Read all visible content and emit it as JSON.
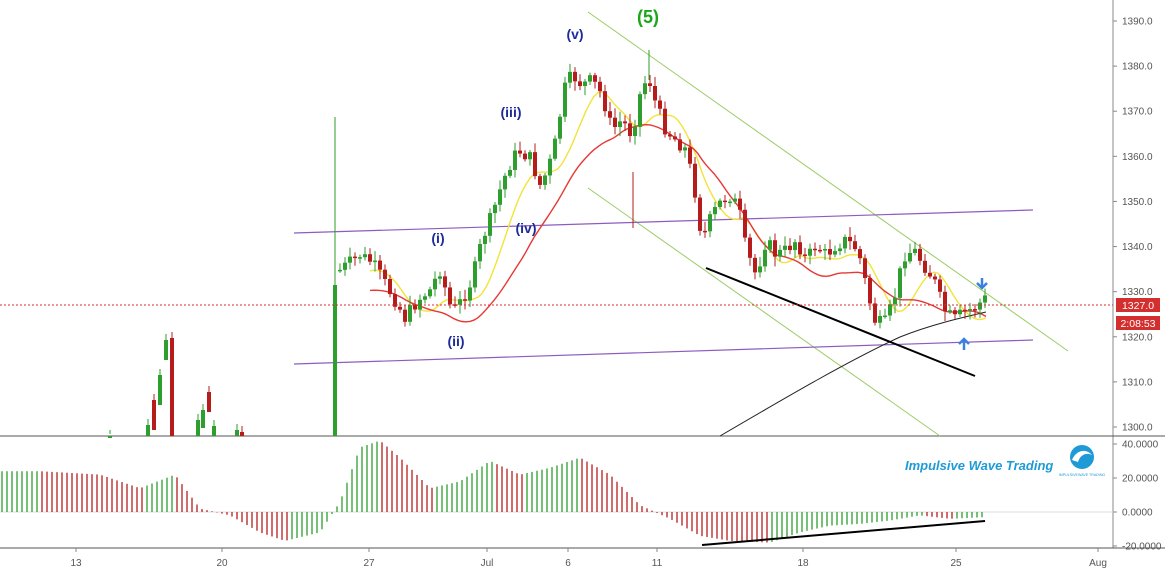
{
  "chart_data": {
    "type": "candlestick",
    "price_axis": {
      "ticks": [
        "1390.0",
        "1380.0",
        "1370.0",
        "1360.0",
        "1350.0",
        "1340.0",
        "1330.0",
        "1320.0",
        "1310.0",
        "1300.0"
      ],
      "range": [
        1297.5,
        1393.5
      ]
    },
    "oscillator_axis": {
      "ticks": [
        "40.0000",
        "20.0000",
        "0.0000",
        "-20.0000"
      ],
      "range": [
        -22,
        43
      ]
    },
    "x_axis": {
      "ticks": [
        "13",
        "20",
        "27",
        "Jul",
        "6",
        "11",
        "18",
        "25",
        "Aug"
      ]
    },
    "current_price": {
      "value": 1327.0,
      "label": "1327.0",
      "countdown": "2:08:53"
    },
    "wave_labels": {
      "w5": "(5)",
      "i": "(i)",
      "ii": "(ii)",
      "iii": "(iii)",
      "iv": "(iv)",
      "v": "(v)"
    },
    "brand_text": "Impulsive Wave Trading",
    "logo_text": "IMPULSIVEWAVE TRADING",
    "grid": false,
    "colors": {
      "up_candle": "#2e9e2e",
      "down_candle": "#b71c1c",
      "ema_fast": "#f2e33a",
      "ema_slow": "#e53935",
      "sma_long": "#222222",
      "channel_green": "#9ccc65",
      "channel_purple": "#8e5bbf",
      "wave_green": "#1aa81a",
      "wave_navy": "#1e2c99",
      "price_line": "#d32f2f",
      "brand": "#1e9bd7",
      "arrow": "#3d7fe0"
    }
  }
}
